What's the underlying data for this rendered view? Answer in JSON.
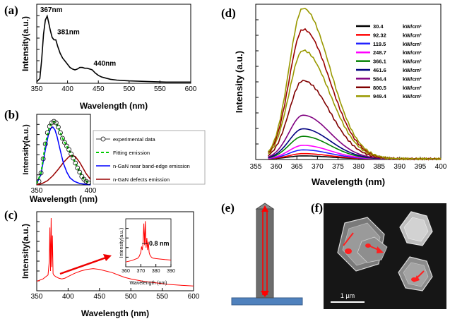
{
  "panels": {
    "a": "(a)",
    "b": "(b)",
    "c": "(c)",
    "d": "(d)",
    "e": "(e)",
    "f": "(f)"
  },
  "scale_bar": {
    "label": "1 µm"
  },
  "chart_data": [
    {
      "id": "a",
      "type": "line",
      "xlabel": "Wavelength (nm)",
      "ylabel": "Intensity(a.u.)",
      "xlim": [
        350,
        600
      ],
      "xticks": [
        350,
        400,
        450,
        500,
        550,
        600
      ],
      "ylim": [
        0,
        1
      ],
      "annotations": [
        {
          "text": "367nm",
          "x": 367
        },
        {
          "text": "381nm",
          "x": 381
        },
        {
          "text": "440nm",
          "x": 440
        }
      ],
      "series": [
        {
          "color": "#000000",
          "x": [
            350,
            355,
            358,
            361,
            364,
            367,
            369,
            372,
            375,
            378,
            381,
            384,
            388,
            392,
            396,
            400,
            404,
            408,
            412,
            416,
            420,
            424,
            428,
            432,
            436,
            440,
            445,
            450,
            455,
            460,
            470,
            480,
            490,
            500,
            520,
            540,
            560,
            580,
            600
          ],
          "y": [
            0.02,
            0.06,
            0.3,
            0.62,
            0.8,
            0.85,
            0.78,
            0.67,
            0.58,
            0.55,
            0.55,
            0.47,
            0.38,
            0.32,
            0.28,
            0.24,
            0.2,
            0.18,
            0.17,
            0.18,
            0.2,
            0.2,
            0.19,
            0.19,
            0.18,
            0.17,
            0.13,
            0.1,
            0.08,
            0.07,
            0.05,
            0.04,
            0.035,
            0.03,
            0.025,
            0.02,
            0.015,
            0.015,
            0.015
          ]
        }
      ]
    },
    {
      "id": "b",
      "type": "line",
      "xlabel": "Wavelength (nm)",
      "ylabel": "Intensity(a.u.)",
      "xlim": [
        350,
        400
      ],
      "xticks": [
        350,
        400
      ],
      "ylim": [
        0,
        1
      ],
      "legend_entries": [
        "experimental data",
        "Fitting emission",
        "n-GaN near band-edge emission",
        "n-GaN defects emission"
      ],
      "series": [
        {
          "name": "experimental data",
          "color": "#000000",
          "style": "markers",
          "x": [
            352,
            354,
            356,
            358,
            360,
            362,
            364,
            366,
            368,
            370,
            372,
            374,
            376,
            378,
            380,
            382,
            384,
            386,
            388,
            390,
            392,
            394,
            396,
            398
          ],
          "y": [
            0.05,
            0.17,
            0.37,
            0.58,
            0.74,
            0.83,
            0.88,
            0.9,
            0.88,
            0.82,
            0.74,
            0.66,
            0.6,
            0.55,
            0.5,
            0.44,
            0.38,
            0.31,
            0.24,
            0.18,
            0.12,
            0.08,
            0.05,
            0.03
          ]
        },
        {
          "name": "Fitting emission",
          "color": "#00cc00",
          "style": "dashed",
          "x": [
            350,
            354,
            358,
            362,
            364,
            366,
            368,
            370,
            374,
            378,
            382,
            386,
            390,
            394,
            398,
            400
          ],
          "y": [
            0.02,
            0.17,
            0.58,
            0.83,
            0.88,
            0.9,
            0.88,
            0.82,
            0.66,
            0.55,
            0.44,
            0.31,
            0.18,
            0.08,
            0.03,
            0.02
          ]
        },
        {
          "name": "n-GaN near band-edge emission",
          "color": "#0000ff",
          "style": "solid",
          "x": [
            350,
            354,
            358,
            361,
            363,
            365,
            367,
            369,
            371,
            373,
            375,
            378,
            381,
            385,
            390,
            395,
            400
          ],
          "y": [
            0.02,
            0.15,
            0.5,
            0.72,
            0.8,
            0.82,
            0.78,
            0.68,
            0.55,
            0.42,
            0.3,
            0.18,
            0.1,
            0.05,
            0.02,
            0.01,
            0.0
          ]
        },
        {
          "name": "n-GaN defects emission",
          "color": "#990000",
          "style": "solid",
          "x": [
            350,
            355,
            360,
            365,
            370,
            375,
            380,
            383,
            386,
            390,
            393,
            396,
            400
          ],
          "y": [
            0.0,
            0.02,
            0.06,
            0.13,
            0.22,
            0.32,
            0.4,
            0.42,
            0.4,
            0.32,
            0.24,
            0.16,
            0.08
          ]
        }
      ]
    },
    {
      "id": "c",
      "type": "line",
      "xlabel": "Wavelength (nm)",
      "ylabel": "Intensity(a.u.)",
      "xlim": [
        350,
        600
      ],
      "xticks": [
        350,
        400,
        450,
        500,
        550,
        600
      ],
      "ylim": [
        0,
        1
      ],
      "series": [
        {
          "color": "#ff0000",
          "x": [
            350,
            360,
            368,
            370,
            371,
            372,
            373,
            374,
            375,
            376,
            377,
            380,
            385,
            390,
            395,
            400,
            410,
            420,
            430,
            440,
            450,
            460,
            470,
            480,
            490,
            500,
            520,
            540,
            560,
            580,
            600
          ],
          "y": [
            0.12,
            0.15,
            0.2,
            0.38,
            0.8,
            0.25,
            0.92,
            0.3,
            0.7,
            0.22,
            0.2,
            0.18,
            0.16,
            0.15,
            0.16,
            0.18,
            0.22,
            0.25,
            0.27,
            0.28,
            0.27,
            0.25,
            0.23,
            0.2,
            0.17,
            0.15,
            0.12,
            0.1,
            0.08,
            0.07,
            0.06
          ]
        }
      ],
      "inset": {
        "xlabel": "Wavelength (nm)",
        "ylabel": "Intensity(a.u.)",
        "xlim": [
          360,
          390
        ],
        "xticks": [
          360,
          370,
          380,
          390
        ],
        "annotation": "0.8 nm",
        "series": [
          {
            "color": "#ff0000",
            "x": [
              360,
              364,
              368,
              369,
              370,
              370.5,
              371,
              371.5,
              372,
              372.5,
              373,
              373.5,
              374,
              374.5,
              375,
              375.5,
              376,
              377,
              378,
              380,
              383,
              386,
              390
            ],
            "y": [
              0.1,
              0.13,
              0.18,
              0.22,
              0.3,
              0.42,
              0.35,
              0.5,
              0.9,
              0.45,
              0.95,
              0.4,
              0.6,
              0.35,
              0.52,
              0.3,
              0.25,
              0.2,
              0.18,
              0.17,
              0.16,
              0.15,
              0.14
            ]
          }
        ]
      }
    },
    {
      "id": "d",
      "type": "line",
      "xlabel": "Wavelength (nm)",
      "ylabel": "Intensity (a.u.)",
      "xlim": [
        355,
        400
      ],
      "xticks": [
        355,
        360,
        365,
        370,
        375,
        380,
        385,
        390,
        395,
        400
      ],
      "ylim": [
        0,
        1
      ],
      "legend_unit": "kW/cm²",
      "series": [
        {
          "name": "30.4",
          "color": "#000000",
          "peak": 0.02
        },
        {
          "name": "92.32",
          "color": "#ff0000",
          "peak": 0.035
        },
        {
          "name": "119.5",
          "color": "#2222ff",
          "peak": 0.06
        },
        {
          "name": "248.7",
          "color": "#ff00ff",
          "peak": 0.09
        },
        {
          "name": "366.1",
          "color": "#008000",
          "peak": 0.15
        },
        {
          "name": "461.6",
          "color": "#000080",
          "peak": 0.2
        },
        {
          "name": "584.4",
          "color": "#800080",
          "peak": 0.29
        },
        {
          "name": "800.5",
          "color": "#800000",
          "peak": 0.52
        },
        {
          "name": "949.4",
          "color": "#999900",
          "peak": 0.72
        },
        {
          "name": "",
          "color": "#990000",
          "peak": 0.86
        },
        {
          "name": "",
          "color": "#999900",
          "peak": 1.0
        }
      ]
    }
  ]
}
